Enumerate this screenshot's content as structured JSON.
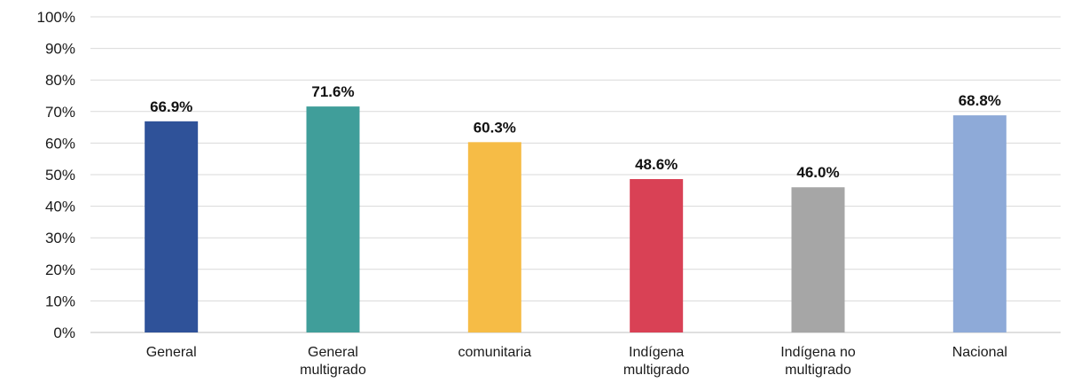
{
  "chart_data": {
    "type": "bar",
    "categories": [
      [
        "General"
      ],
      [
        "General",
        "multigrado"
      ],
      [
        "comunitaria"
      ],
      [
        "Indígena",
        "multigrado"
      ],
      [
        "Indígena no",
        "multigrado"
      ],
      [
        "Nacional"
      ]
    ],
    "values": [
      66.9,
      71.6,
      60.3,
      48.6,
      46.0,
      68.8
    ],
    "data_labels": [
      "66.9%",
      "71.6%",
      "60.3%",
      "48.6%",
      "46.0%",
      "68.8%"
    ],
    "colors": [
      "#2f5299",
      "#409e9a",
      "#f6bc46",
      "#d94155",
      "#a6a6a6",
      "#8eaad8"
    ],
    "ylim": [
      0,
      100
    ],
    "yticks": [
      0,
      10,
      20,
      30,
      40,
      50,
      60,
      70,
      80,
      90,
      100
    ],
    "ytick_labels": [
      "0%",
      "10%",
      "20%",
      "30%",
      "40%",
      "50%",
      "60%",
      "70%",
      "80%",
      "90%",
      "100%"
    ],
    "grid": true,
    "title": "",
    "xlabel": "",
    "ylabel": ""
  }
}
